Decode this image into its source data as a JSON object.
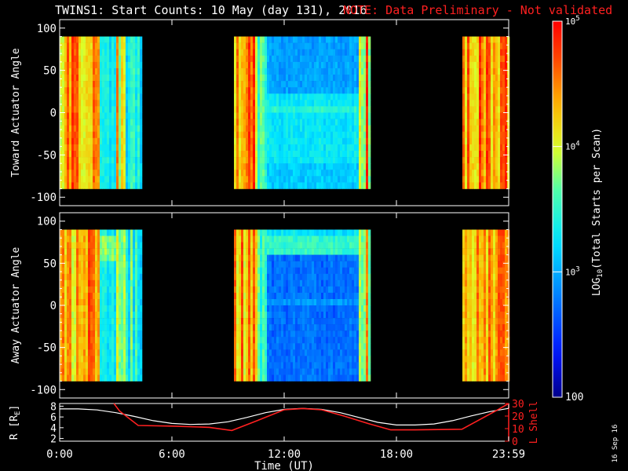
{
  "title": "TWINS1: Start Counts: 10 May (day 131), 2016",
  "note": "NOTE: Data Preliminary - Not validated",
  "stamp": "16 Sep 16",
  "colors": {
    "background": "#000000",
    "axis": "#ffffff",
    "note": "#ff2020",
    "lshell": "#ff2020",
    "radius": "#ffffff"
  },
  "chart_data": [
    {
      "type": "heatmap",
      "name": "toward",
      "ylabel": "Toward Actuator Angle",
      "xlim": [
        0,
        24
      ],
      "ylim": [
        -110,
        110
      ],
      "yticks": [
        100,
        50,
        0,
        -50,
        -100
      ],
      "data_angle_range": [
        -90,
        90
      ],
      "coverage_hours": [
        [
          0,
          4.35
        ],
        [
          9.2,
          16.5
        ],
        [
          21.5,
          24
        ]
      ]
    },
    {
      "type": "heatmap",
      "name": "away",
      "ylabel": "Away Actuator Angle",
      "xlim": [
        0,
        24
      ],
      "ylim": [
        -110,
        110
      ],
      "yticks": [
        100,
        50,
        0,
        -50,
        -100
      ],
      "data_angle_range": [
        -90,
        90
      ],
      "coverage_hours": [
        [
          0,
          4.35
        ],
        [
          9.2,
          16.5
        ],
        [
          21.5,
          24
        ]
      ]
    },
    {
      "type": "line",
      "name": "ephemeris",
      "ylabel_left": "R [R",
      "ylabel_left_sub": "E",
      "ylabel_left_close": "]",
      "ylabel_right": "L Shell",
      "ylim_left": [
        1.5,
        8.5
      ],
      "yticks_left": [
        2,
        4,
        6,
        8
      ],
      "ylim_right": [
        0,
        30
      ],
      "yticks_right": [
        10,
        20,
        30
      ],
      "yticklabels_right": [
        "10",
        "20",
        "30"
      ],
      "extra_right_tick": "0",
      "xticks": [
        0,
        6,
        12,
        18,
        24
      ],
      "xticklabels": [
        "0:00",
        "6:00",
        "12:00",
        "18:00",
        "23:59"
      ],
      "xlabel": "Time (UT)",
      "series": [
        {
          "name": "R",
          "axis": "left",
          "x": [
            0,
            1,
            2,
            3,
            4,
            5,
            6,
            7,
            8,
            9,
            10,
            11,
            12,
            13,
            14,
            15,
            16,
            17,
            18,
            19,
            20,
            21,
            22,
            23,
            24
          ],
          "values": [
            7.5,
            7.5,
            7.3,
            6.8,
            6.1,
            5.3,
            4.8,
            4.6,
            4.7,
            5.1,
            5.9,
            6.8,
            7.4,
            7.6,
            7.4,
            6.8,
            5.9,
            5.0,
            4.5,
            4.5,
            4.7,
            5.3,
            6.2,
            7.0,
            7.6
          ]
        },
        {
          "name": "L Shell",
          "axis": "right",
          "x": [
            2.9,
            3.2,
            4.2,
            6,
            8,
            9.2,
            10.5,
            12,
            13,
            14,
            15.2,
            16.5,
            17.7,
            19,
            21.5,
            23.3,
            24
          ],
          "values": [
            30,
            24,
            12.5,
            12,
            11,
            8.5,
            16,
            25,
            26,
            25,
            20,
            14,
            9,
            9,
            9.5,
            24,
            30
          ]
        }
      ]
    }
  ],
  "colorbar": {
    "label_prefix": "LOG",
    "label_sub": "10",
    "label_suffix": "(Total Starts per Scan)",
    "ticks": [
      {
        "base": "10",
        "exp": "5"
      },
      {
        "base": "10",
        "exp": "4"
      },
      {
        "base": "10",
        "exp": "3"
      }
    ],
    "bottom_label": "100",
    "log_range": [
      2,
      5
    ]
  }
}
